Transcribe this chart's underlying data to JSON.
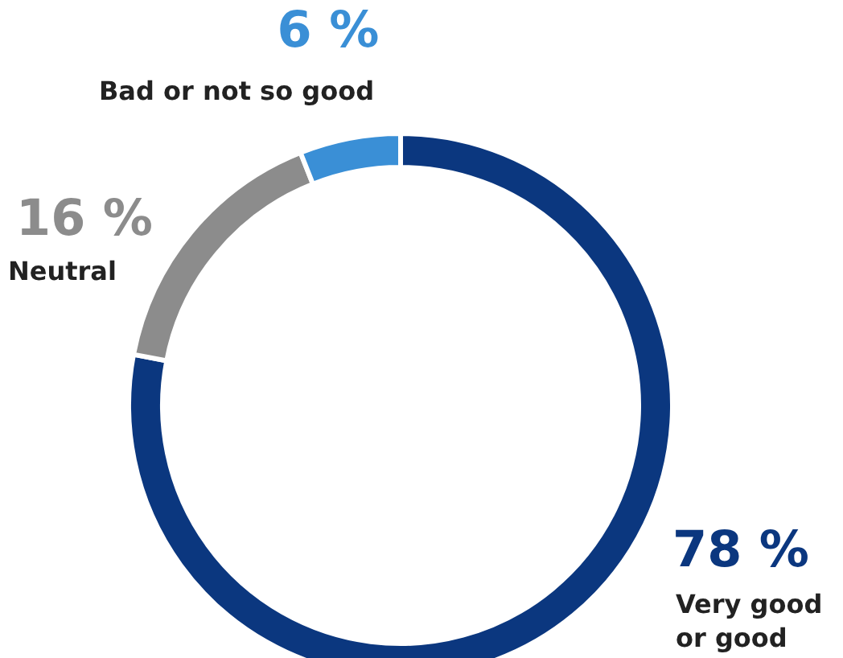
{
  "chart_data": {
    "type": "donut",
    "categories": [
      "Very good or good",
      "Neutral",
      "Bad or not so good"
    ],
    "values": [
      78,
      16,
      6
    ],
    "value_labels": [
      "78 %",
      "16 %",
      "6 %"
    ],
    "colors": [
      "#0b377f",
      "#8c8c8c",
      "#3a8fd6"
    ]
  }
}
